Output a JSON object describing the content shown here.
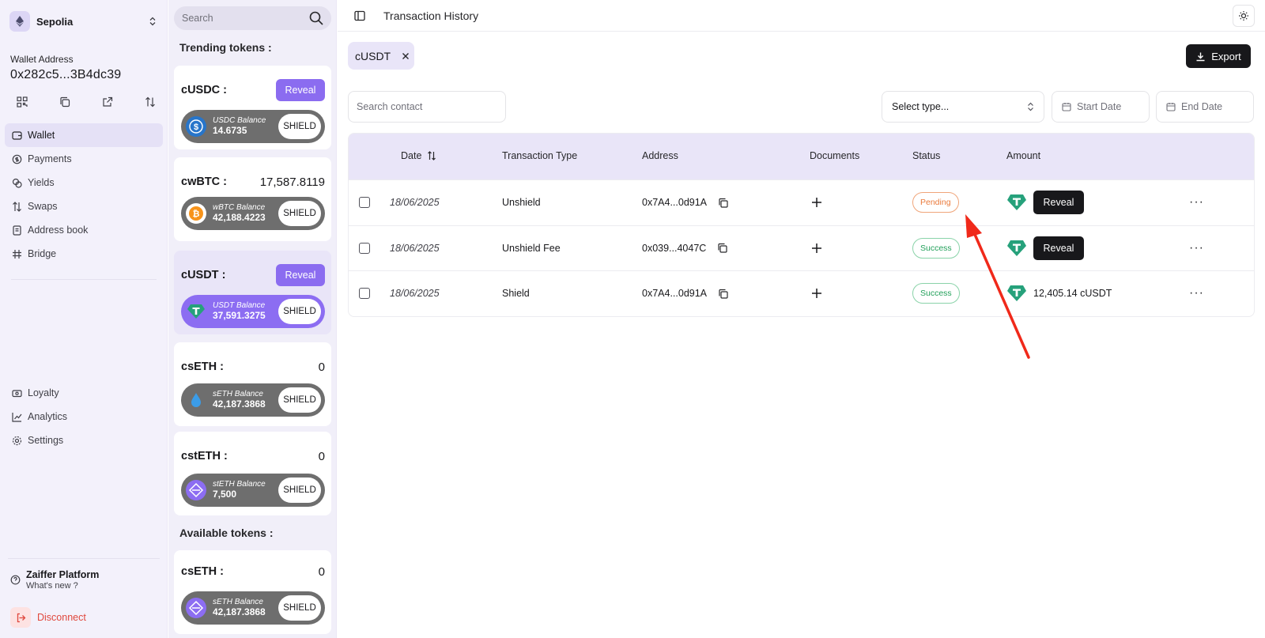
{
  "network": {
    "name": "Sepolia"
  },
  "wallet": {
    "label": "Wallet Address",
    "address": "0x282c5...3B4dc39"
  },
  "nav": {
    "top": [
      {
        "label": "Wallet",
        "icon": "wallet-icon",
        "active": true
      },
      {
        "label": "Payments",
        "icon": "payments-icon"
      },
      {
        "label": "Yields",
        "icon": "yields-icon"
      },
      {
        "label": "Swaps",
        "icon": "swap-icon"
      },
      {
        "label": "Address book",
        "icon": "address-book-icon"
      },
      {
        "label": "Bridge",
        "icon": "bridge-icon"
      }
    ],
    "bottom": [
      {
        "label": "Loyalty",
        "icon": "loyalty-icon"
      },
      {
        "label": "Analytics",
        "icon": "analytics-icon"
      },
      {
        "label": "Settings",
        "icon": "settings-icon"
      }
    ]
  },
  "footer": {
    "title": "Zaiffer Platform",
    "subtitle": "What's new ?",
    "disconnect": "Disconnect"
  },
  "token_panel": {
    "search_placeholder": "Search",
    "trending_label": "Trending tokens :",
    "available_label": "Available tokens :",
    "trending": [
      {
        "name": "cUSDC :",
        "value": "",
        "reveal": "Reveal",
        "balance_label": "USDC Balance",
        "balance": "14.6735",
        "shield": "SHIELD",
        "coin": "usdc-icon",
        "coin_color": "#2775ca"
      },
      {
        "name": "cwBTC :",
        "value": "17,587.8119",
        "reveal": "",
        "balance_label": "wBTC Balance",
        "balance": "42,188.4223",
        "shield": "SHIELD",
        "coin": "bitcoin-icon",
        "coin_color": "#f7931a"
      },
      {
        "name": "cUSDT :",
        "value": "",
        "reveal": "Reveal",
        "balance_label": "USDT Balance",
        "balance": "37,591.3275",
        "shield": "SHIELD",
        "coin": "tether-icon",
        "coin_color": "#26a17b",
        "selected": true
      },
      {
        "name": "csETH :",
        "value": "0",
        "reveal": "",
        "balance_label": "sETH Balance",
        "balance": "42,187.3868",
        "shield": "SHIELD",
        "coin": "droplet-icon",
        "coin_color": "#3b9ce8"
      },
      {
        "name": "cstETH :",
        "value": "0",
        "reveal": "",
        "balance_label": "stETH Balance",
        "balance": "7,500",
        "shield": "SHIELD",
        "coin": "steth-icon",
        "coin_color": "#8c6df2"
      }
    ],
    "available": [
      {
        "name": "csETH :",
        "value": "0",
        "balance_label": "sETH Balance",
        "balance": "42,187.3868",
        "shield": "SHIELD",
        "coin": "seth-icon",
        "coin_color": "#8c6df2"
      }
    ]
  },
  "header": {
    "title": "Transaction History"
  },
  "filters": {
    "chip": "cUSDT",
    "export": "Export",
    "contact_placeholder": "Search contact",
    "select_type": "Select type...",
    "start_date": "Start Date",
    "end_date": "End Date"
  },
  "table": {
    "columns": {
      "date": "Date",
      "type": "Transaction Type",
      "address": "Address",
      "documents": "Documents",
      "status": "Status",
      "amount": "Amount"
    },
    "rows": [
      {
        "date": "18/06/2025",
        "type": "Unshield",
        "address": "0x7A4...0d91A",
        "status": "Pending",
        "status_kind": "pending",
        "amount": "",
        "amount_action": "Reveal"
      },
      {
        "date": "18/06/2025",
        "type": "Unshield Fee",
        "address": "0x039...4047C",
        "status": "Success",
        "status_kind": "success",
        "amount": "",
        "amount_action": "Reveal"
      },
      {
        "date": "18/06/2025",
        "type": "Shield",
        "address": "0x7A4...0d91A",
        "status": "Success",
        "status_kind": "success",
        "amount": "12,405.14 cUSDT",
        "amount_action": ""
      }
    ]
  },
  "colors": {
    "accent": "#8b6cf0",
    "header_bg": "#e9e5f8",
    "annotation": "#f0291a",
    "tether": "#26a17b"
  }
}
